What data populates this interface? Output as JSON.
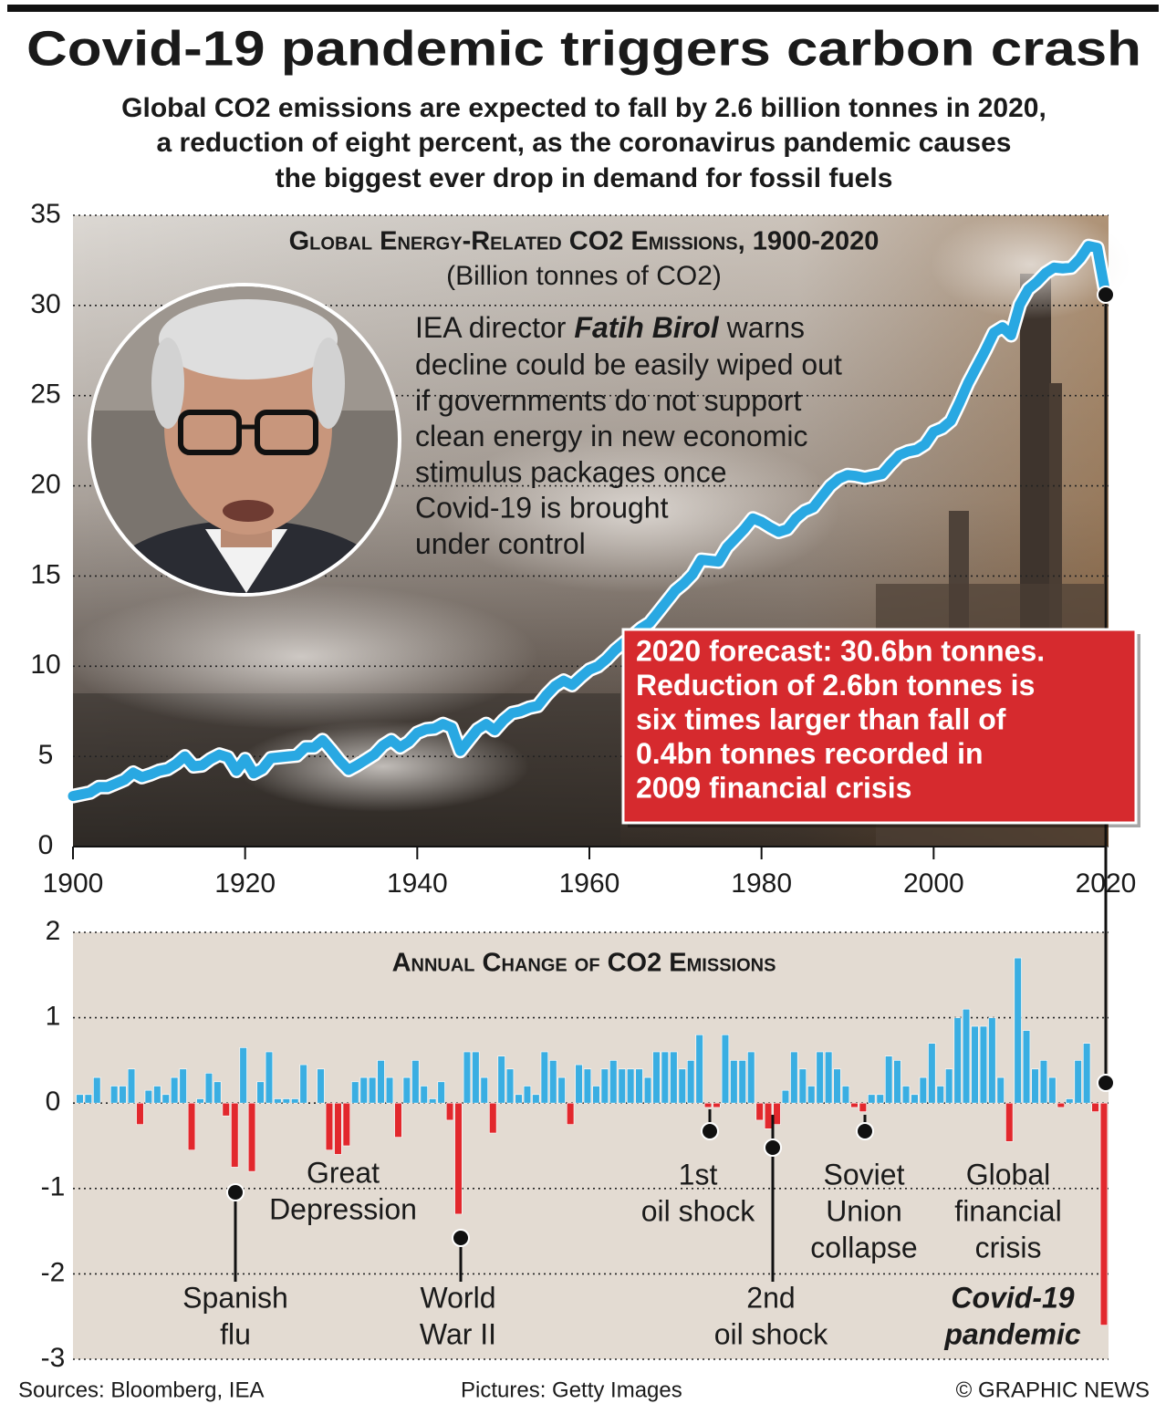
{
  "title": "Covid-19 pandemic triggers carbon crash",
  "subtitle": [
    "Global CO2 emissions are expected to fall by 2.6 billion tonnes in 2020,",
    "a reduction of eight percent, as the coronavirus pandemic causes",
    "the biggest ever drop in demand for fossil fuels"
  ],
  "chart_data": [
    {
      "type": "line",
      "title": "Global Energy-Related CO2 Emissions, 1900-2020",
      "subtitle": "(Billion tonnes of CO2)",
      "x": [
        1900,
        1901,
        1902,
        1903,
        1904,
        1905,
        1906,
        1907,
        1908,
        1909,
        1910,
        1911,
        1912,
        1913,
        1914,
        1915,
        1916,
        1917,
        1918,
        1919,
        1920,
        1921,
        1922,
        1923,
        1924,
        1925,
        1926,
        1927,
        1928,
        1929,
        1930,
        1931,
        1932,
        1933,
        1934,
        1935,
        1936,
        1937,
        1938,
        1939,
        1940,
        1941,
        1942,
        1943,
        1944,
        1945,
        1946,
        1947,
        1948,
        1949,
        1950,
        1951,
        1952,
        1953,
        1954,
        1955,
        1956,
        1957,
        1958,
        1959,
        1960,
        1961,
        1962,
        1963,
        1964,
        1965,
        1966,
        1967,
        1968,
        1969,
        1970,
        1971,
        1972,
        1973,
        1974,
        1975,
        1976,
        1977,
        1978,
        1979,
        1980,
        1981,
        1982,
        1983,
        1984,
        1985,
        1986,
        1987,
        1988,
        1989,
        1990,
        1991,
        1992,
        1993,
        1994,
        1995,
        1996,
        1997,
        1998,
        1999,
        2000,
        2001,
        2002,
        2003,
        2004,
        2005,
        2006,
        2007,
        2008,
        2009,
        2010,
        2011,
        2012,
        2013,
        2014,
        2015,
        2016,
        2017,
        2018,
        2019,
        2020
      ],
      "values": [
        2.8,
        2.9,
        3.0,
        3.3,
        3.3,
        3.5,
        3.7,
        4.1,
        3.85,
        4.0,
        4.2,
        4.3,
        4.6,
        5.0,
        4.45,
        4.5,
        4.85,
        5.1,
        4.95,
        4.2,
        4.85,
        4.05,
        4.3,
        4.9,
        4.95,
        5.0,
        5.05,
        5.5,
        5.5,
        5.9,
        5.35,
        4.75,
        4.25,
        4.5,
        4.8,
        5.1,
        5.6,
        5.9,
        5.5,
        5.8,
        6.3,
        6.5,
        6.55,
        6.8,
        6.6,
        5.3,
        5.9,
        6.5,
        6.8,
        6.45,
        7.0,
        7.4,
        7.5,
        7.7,
        7.8,
        8.4,
        8.9,
        9.2,
        8.95,
        9.4,
        9.8,
        10.0,
        10.4,
        10.9,
        11.3,
        11.7,
        12.1,
        12.4,
        13.0,
        13.6,
        14.2,
        14.6,
        15.1,
        15.9,
        15.85,
        15.8,
        16.6,
        17.1,
        17.6,
        18.2,
        18.0,
        17.7,
        17.45,
        17.6,
        18.2,
        18.6,
        18.8,
        19.4,
        20.0,
        20.4,
        20.6,
        20.55,
        20.45,
        20.55,
        20.65,
        21.2,
        21.7,
        21.9,
        22.0,
        22.3,
        23.0,
        23.2,
        23.6,
        24.6,
        25.7,
        26.6,
        27.5,
        28.5,
        28.8,
        28.35,
        30.05,
        30.9,
        31.3,
        31.8,
        32.1,
        32.05,
        32.1,
        32.6,
        33.3,
        33.2,
        30.6
      ],
      "color": "#29a8e2",
      "xlim": [
        1900,
        2020
      ],
      "ylim": [
        0,
        35
      ],
      "xticks": [
        1900,
        1920,
        1940,
        1960,
        1980,
        2000,
        2020
      ],
      "yticks": [
        0,
        5,
        10,
        15,
        20,
        25,
        30,
        35
      ],
      "grid": true,
      "quote": {
        "lead": "IEA director",
        "name": "Fatih Birol",
        "tail": "warns",
        "lines": [
          "decline could be easily wiped out",
          "if governments do not support",
          "clean energy in new economic",
          "stimulus packages once",
          "Covid-19 is brought",
          "under control"
        ]
      },
      "annotation": [
        "2020 forecast: 30.6bn tonnes.",
        "Reduction of 2.6bn tonnes is",
        "six times larger than fall of",
        "0.4bn tonnes recorded in",
        "2009 financial crisis"
      ]
    },
    {
      "type": "bar",
      "title": "Annual Change of CO2 Emissions",
      "x": [
        1901,
        1902,
        1903,
        1904,
        1905,
        1906,
        1907,
        1908,
        1909,
        1910,
        1911,
        1912,
        1913,
        1914,
        1915,
        1916,
        1917,
        1918,
        1919,
        1920,
        1921,
        1922,
        1923,
        1924,
        1925,
        1926,
        1927,
        1928,
        1929,
        1930,
        1931,
        1932,
        1933,
        1934,
        1935,
        1936,
        1937,
        1938,
        1939,
        1940,
        1941,
        1942,
        1943,
        1944,
        1945,
        1946,
        1947,
        1948,
        1949,
        1950,
        1951,
        1952,
        1953,
        1954,
        1955,
        1956,
        1957,
        1958,
        1959,
        1960,
        1961,
        1962,
        1963,
        1964,
        1965,
        1966,
        1967,
        1968,
        1969,
        1970,
        1971,
        1972,
        1973,
        1974,
        1975,
        1976,
        1977,
        1978,
        1979,
        1980,
        1981,
        1982,
        1983,
        1984,
        1985,
        1986,
        1987,
        1988,
        1989,
        1990,
        1991,
        1992,
        1993,
        1994,
        1995,
        1996,
        1997,
        1998,
        1999,
        2000,
        2001,
        2002,
        2003,
        2004,
        2005,
        2006,
        2007,
        2008,
        2009,
        2010,
        2011,
        2012,
        2013,
        2014,
        2015,
        2016,
        2017,
        2018,
        2019,
        2020
      ],
      "values": [
        0.1,
        0.1,
        0.3,
        0,
        0.2,
        0.2,
        0.4,
        -0.25,
        0.15,
        0.2,
        0.1,
        0.3,
        0.4,
        -0.55,
        0.05,
        0.35,
        0.25,
        -0.15,
        -0.75,
        0.65,
        -0.8,
        0.25,
        0.6,
        0.05,
        0.05,
        0.05,
        0.45,
        0,
        0.4,
        -0.55,
        -0.6,
        -0.5,
        0.25,
        0.3,
        0.3,
        0.5,
        0.3,
        -0.4,
        0.3,
        0.5,
        0.2,
        0.05,
        0.25,
        -0.2,
        -1.3,
        0.6,
        0.6,
        0.3,
        -0.35,
        0.55,
        0.4,
        0.1,
        0.2,
        0.1,
        0.6,
        0.5,
        0.3,
        -0.25,
        0.45,
        0.4,
        0.2,
        0.4,
        0.5,
        0.4,
        0.4,
        0.4,
        0.3,
        0.6,
        0.6,
        0.6,
        0.4,
        0.5,
        0.8,
        -0.05,
        -0.05,
        0.8,
        0.5,
        0.5,
        0.6,
        -0.2,
        -0.3,
        -0.25,
        0.15,
        0.6,
        0.4,
        0.2,
        0.6,
        0.6,
        0.4,
        0.2,
        -0.05,
        -0.1,
        0.1,
        0.1,
        0.55,
        0.5,
        0.2,
        0.1,
        0.3,
        0.7,
        0.2,
        0.4,
        1.0,
        1.1,
        0.9,
        0.9,
        1.0,
        0.3,
        -0.45,
        1.7,
        0.85,
        0.4,
        0.5,
        0.3,
        -0.05,
        0.05,
        0.5,
        0.7,
        -0.1,
        -2.6
      ],
      "color": "#3aaee2",
      "negative_color": "#e2282d",
      "xlim": [
        1900,
        2020
      ],
      "ylim": [
        -3,
        2
      ],
      "yticks": [
        -3,
        -2,
        -1,
        0,
        1,
        2
      ],
      "grid": true,
      "events": [
        {
          "lines": [
            "Spanish",
            "flu"
          ]
        },
        {
          "lines": [
            "Great",
            "Depression"
          ]
        },
        {
          "lines": [
            "World",
            "War II"
          ]
        },
        {
          "lines": [
            "1st",
            "oil shock"
          ]
        },
        {
          "lines": [
            "2nd",
            "oil shock"
          ]
        },
        {
          "lines": [
            "Soviet",
            "Union",
            "collapse"
          ]
        },
        {
          "lines": [
            "Global",
            "financial",
            "crisis"
          ]
        },
        {
          "lines": [
            "Covid-19",
            "pandemic"
          ]
        }
      ]
    }
  ],
  "footer": {
    "sources": "Sources: Bloomberg, IEA",
    "pictures": "Pictures: Getty Images",
    "credit": "© GRAPHIC NEWS"
  }
}
